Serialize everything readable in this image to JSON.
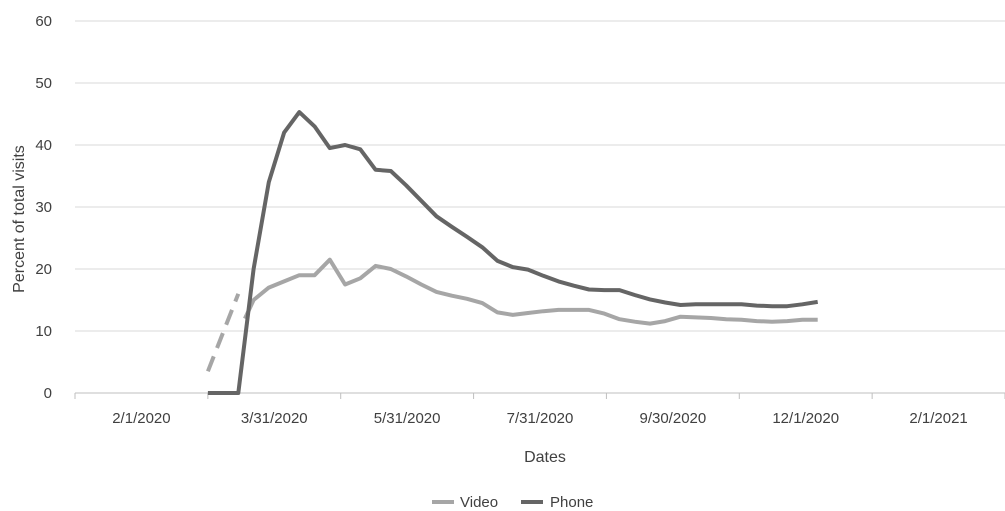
{
  "chart_data": {
    "type": "line",
    "title": "",
    "xlabel": "Dates",
    "ylabel": "Percent of total visits",
    "x_tick_labels": [
      "2/1/2020",
      "3/31/2020",
      "5/31/2020",
      "7/31/2020",
      "9/30/2020",
      "12/1/2020",
      "2/1/2021"
    ],
    "y_tick_labels": [
      "0",
      "10",
      "20",
      "30",
      "40",
      "50",
      "60"
    ],
    "ylim": [
      0,
      60
    ],
    "xlim": [
      "2020-01-01",
      "2021-03-03"
    ],
    "grid": "horizontal",
    "legend_position": "bottom",
    "series": [
      {
        "name": "Video",
        "color": "#a6a6a6",
        "segments": [
          {
            "style": "dashed",
            "x": [
              "2020-03-02",
              "2020-03-16"
            ],
            "y": [
              3.5,
              16
            ]
          },
          {
            "style": "solid",
            "x": [
              "2020-03-19",
              "2020-03-23",
              "2020-03-30",
              "2020-04-06",
              "2020-04-13",
              "2020-04-20",
              "2020-04-27",
              "2020-05-04",
              "2020-05-11",
              "2020-05-18",
              "2020-05-25",
              "2020-06-01",
              "2020-06-08",
              "2020-06-15",
              "2020-06-22",
              "2020-06-29",
              "2020-07-06",
              "2020-07-13",
              "2020-07-20",
              "2020-07-27",
              "2020-08-03",
              "2020-08-10",
              "2020-08-17",
              "2020-08-24",
              "2020-08-31",
              "2020-09-07",
              "2020-09-14",
              "2020-09-21",
              "2020-09-28",
              "2020-10-05",
              "2020-10-12",
              "2020-10-19",
              "2020-10-26",
              "2020-11-02",
              "2020-11-09",
              "2020-11-16",
              "2020-11-23",
              "2020-11-30",
              "2020-12-07"
            ],
            "y": [
              12,
              15,
              17,
              18,
              19,
              19,
              21.5,
              17.5,
              18.5,
              20.5,
              20,
              18.8,
              17.5,
              16.3,
              15.7,
              15.2,
              14.5,
              13,
              12.6,
              12.9,
              13.2,
              13.4,
              13.4,
              13.4,
              12.8,
              11.9,
              11.5,
              11.2,
              11.6,
              12.3,
              12.2,
              12.1,
              11.9,
              11.8,
              11.6,
              11.5,
              11.6,
              11.8,
              11.8
            ]
          }
        ]
      },
      {
        "name": "Phone",
        "color": "#656565",
        "segments": [
          {
            "style": "solid",
            "x": [
              "2020-03-02",
              "2020-03-09",
              "2020-03-16",
              "2020-03-23",
              "2020-03-30",
              "2020-04-06",
              "2020-04-13",
              "2020-04-20",
              "2020-04-27",
              "2020-05-04",
              "2020-05-11",
              "2020-05-18",
              "2020-05-25",
              "2020-06-01",
              "2020-06-08",
              "2020-06-15",
              "2020-06-22",
              "2020-06-29",
              "2020-07-06",
              "2020-07-13",
              "2020-07-20",
              "2020-07-27",
              "2020-08-03",
              "2020-08-10",
              "2020-08-17",
              "2020-08-24",
              "2020-08-31",
              "2020-09-07",
              "2020-09-14",
              "2020-09-21",
              "2020-09-28",
              "2020-10-05",
              "2020-10-12",
              "2020-10-19",
              "2020-10-26",
              "2020-11-02",
              "2020-11-09",
              "2020-11-16",
              "2020-11-23",
              "2020-11-30",
              "2020-12-07"
            ],
            "y": [
              0,
              0,
              0,
              20,
              34,
              42,
              45.3,
              43,
              39.5,
              40,
              39.3,
              36,
              35.8,
              33.5,
              31,
              28.5,
              26.8,
              25.2,
              23.5,
              21.3,
              20.3,
              19.9,
              18.9,
              18,
              17.3,
              16.7,
              16.6,
              16.6,
              15.8,
              15.1,
              14.6,
              14.2,
              14.3,
              14.3,
              14.3,
              14.3,
              14.1,
              14,
              14,
              14.3,
              14.7
            ]
          }
        ]
      }
    ]
  }
}
